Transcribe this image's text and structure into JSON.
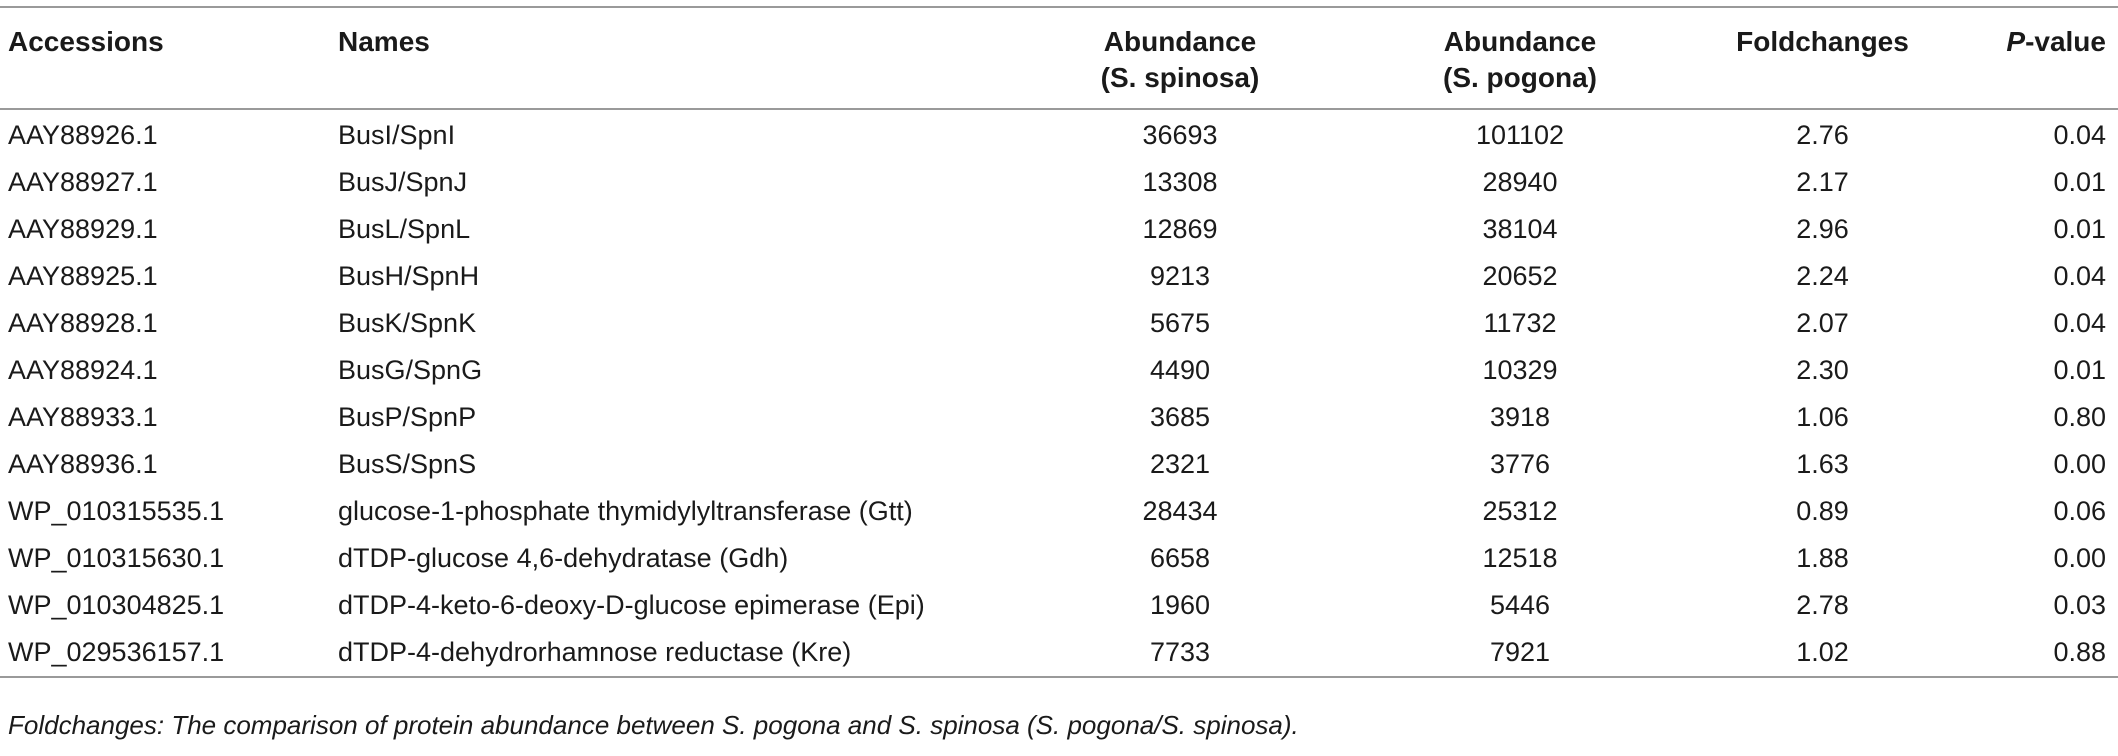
{
  "table": {
    "headers": {
      "accessions": "Accessions",
      "names": "Names",
      "abundance1": "Abundance",
      "abundance1_sub": "(S. spinosa)",
      "abundance2": "Abundance",
      "abundance2_sub": "(S. pogona)",
      "foldchanges": "Foldchanges",
      "pvalue_p": "P",
      "pvalue_rest": "-value"
    },
    "rows": [
      {
        "accession": "AAY88926.1",
        "name": "BusI/SpnI",
        "ab_spinosa": "36693",
        "ab_pogona": "101102",
        "fold": "2.76",
        "p": "0.04"
      },
      {
        "accession": "AAY88927.1",
        "name": "BusJ/SpnJ",
        "ab_spinosa": "13308",
        "ab_pogona": "28940",
        "fold": "2.17",
        "p": "0.01"
      },
      {
        "accession": "AAY88929.1",
        "name": "BusL/SpnL",
        "ab_spinosa": "12869",
        "ab_pogona": "38104",
        "fold": "2.96",
        "p": "0.01"
      },
      {
        "accession": "AAY88925.1",
        "name": "BusH/SpnH",
        "ab_spinosa": "9213",
        "ab_pogona": "20652",
        "fold": "2.24",
        "p": "0.04"
      },
      {
        "accession": "AAY88928.1",
        "name": "BusK/SpnK",
        "ab_spinosa": "5675",
        "ab_pogona": "11732",
        "fold": "2.07",
        "p": "0.04"
      },
      {
        "accession": "AAY88924.1",
        "name": "BusG/SpnG",
        "ab_spinosa": "4490",
        "ab_pogona": "10329",
        "fold": "2.30",
        "p": "0.01"
      },
      {
        "accession": "AAY88933.1",
        "name": "BusP/SpnP",
        "ab_spinosa": "3685",
        "ab_pogona": "3918",
        "fold": "1.06",
        "p": "0.80"
      },
      {
        "accession": "AAY88936.1",
        "name": "BusS/SpnS",
        "ab_spinosa": "2321",
        "ab_pogona": "3776",
        "fold": "1.63",
        "p": "0.00"
      },
      {
        "accession": "WP_010315535.1",
        "name": "glucose-1-phosphate thymidylyltransferase (Gtt)",
        "ab_spinosa": "28434",
        "ab_pogona": "25312",
        "fold": "0.89",
        "p": "0.06"
      },
      {
        "accession": "WP_010315630.1",
        "name": "dTDP-glucose 4,6-dehydratase (Gdh)",
        "ab_spinosa": "6658",
        "ab_pogona": "12518",
        "fold": "1.88",
        "p": "0.00"
      },
      {
        "accession": "WP_010304825.1",
        "name": "dTDP-4-keto-6-deoxy-D-glucose epimerase (Epi)",
        "ab_spinosa": "1960",
        "ab_pogona": "5446",
        "fold": "2.78",
        "p": "0.03"
      },
      {
        "accession": "WP_029536157.1",
        "name": "dTDP-4-dehydrorhamnose reductase (Kre)",
        "ab_spinosa": "7733",
        "ab_pogona": "7921",
        "fold": "1.02",
        "p": "0.88"
      }
    ]
  },
  "footnote": "Foldchanges: The comparison of protein abundance between S. pogona and S. spinosa (S. pogona/S. spinosa)."
}
